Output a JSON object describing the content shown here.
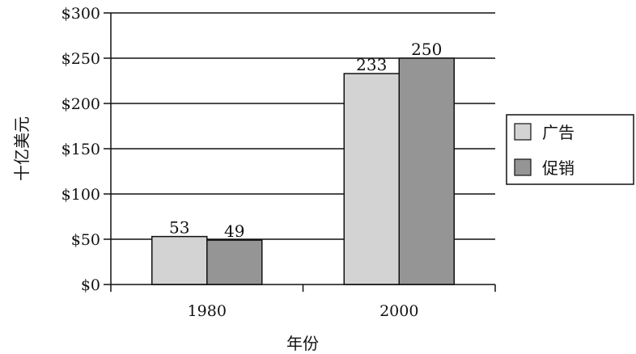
{
  "chart_data": {
    "type": "bar",
    "categories": [
      "1980",
      "2000"
    ],
    "series": [
      {
        "name": "广告",
        "values": [
          53,
          233
        ],
        "color": "#d3d3d3"
      },
      {
        "name": "促销",
        "values": [
          49,
          250
        ],
        "color": "#959595"
      }
    ],
    "xlabel": "年份",
    "ylabel": "十亿美元",
    "ylim": [
      0,
      300
    ],
    "yticks": [
      "$0",
      "$50",
      "$100",
      "$150",
      "$200",
      "$250",
      "$300"
    ],
    "grid": true,
    "legend_position": "right"
  }
}
